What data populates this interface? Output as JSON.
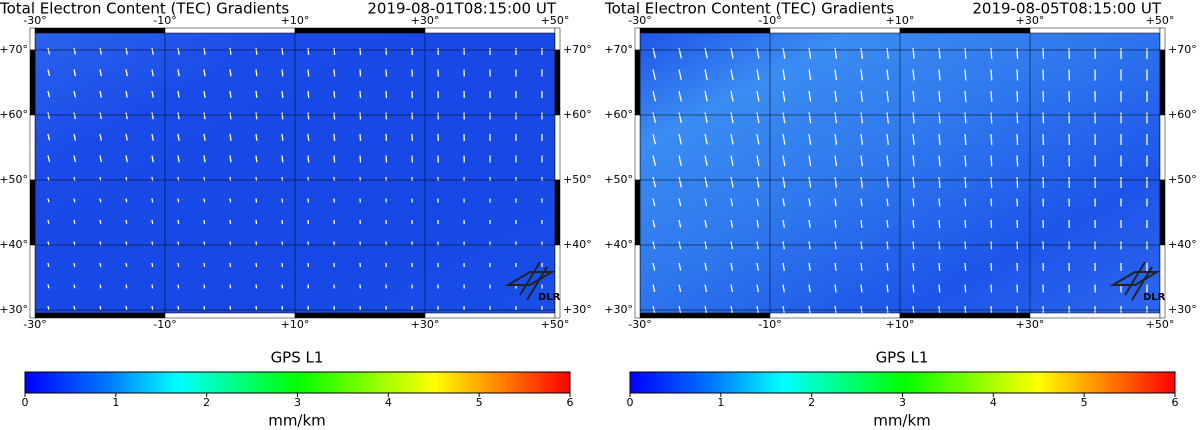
{
  "panels": [
    {
      "title": "Total Electron Content (TEC) Gradients",
      "timestamp": "2019-08-01T08:15:00 UT",
      "lon_ticks": [
        "-30°",
        "-10°",
        "+10°",
        "+30°",
        "+50°"
      ],
      "lat_ticks": [
        "+70°",
        "+60°",
        "+50°",
        "+40°",
        "+30°"
      ],
      "logo": "DLR",
      "colorbar": {
        "label": "GPS L1",
        "ticks": [
          "0",
          "1",
          "2",
          "3",
          "4",
          "5",
          "6"
        ],
        "unit": "mm/km"
      }
    },
    {
      "title": "Total Electron Content (TEC) Gradients",
      "timestamp": "2019-08-05T08:15:00 UT",
      "lon_ticks": [
        "-30°",
        "-10°",
        "+10°",
        "+30°",
        "+50°"
      ],
      "lat_ticks": [
        "+70°",
        "+60°",
        "+50°",
        "+40°",
        "+30°"
      ],
      "logo": "DLR",
      "colorbar": {
        "label": "GPS L1",
        "ticks": [
          "0",
          "1",
          "2",
          "3",
          "4",
          "5",
          "6"
        ],
        "unit": "mm/km"
      }
    }
  ]
}
